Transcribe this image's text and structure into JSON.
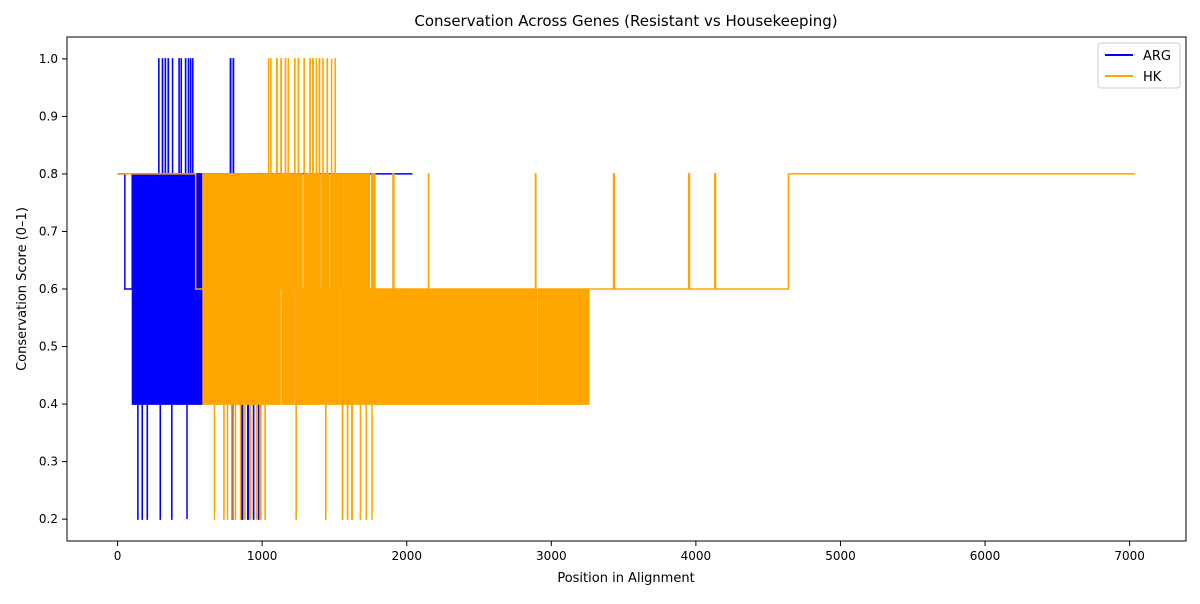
{
  "chart_data": {
    "type": "line",
    "title": "Conservation Across Genes (Resistant vs Housekeeping)",
    "xlabel": "Position in Alignment",
    "ylabel": "Conservation Score (0–1)",
    "xlim": [
      -350,
      7390
    ],
    "ylim": [
      0.162,
      1.038
    ],
    "x_ticks": [
      0,
      1000,
      2000,
      3000,
      4000,
      5000,
      6000,
      7000
    ],
    "y_ticks": [
      0.2,
      0.3,
      0.4,
      0.5,
      0.6,
      0.7,
      0.8,
      0.9,
      1.0
    ],
    "grid": false,
    "legend_position": "top-right",
    "series": [
      {
        "name": "ARG",
        "color": "#0000ff",
        "x_end": 2040,
        "segments": [
          {
            "x0": 0,
            "x1": 50,
            "pattern": "flat",
            "levels": [
              0.8
            ]
          },
          {
            "x0": 50,
            "x1": 100,
            "pattern": "flat",
            "levels": [
              0.6
            ]
          },
          {
            "x0": 100,
            "x1": 590,
            "pattern": "dense",
            "levels": [
              0.4,
              0.6,
              0.8
            ]
          },
          {
            "x0": 590,
            "x1": 1020,
            "pattern": "sparse",
            "levels": [
              0.6,
              0.8
            ]
          },
          {
            "x0": 1020,
            "x1": 2040,
            "pattern": "flat",
            "levels": [
              0.8
            ]
          }
        ],
        "spikes": [
          {
            "x": 140,
            "y": 0.2
          },
          {
            "x": 170,
            "y": 0.2
          },
          {
            "x": 205,
            "y": 0.2
          },
          {
            "x": 285,
            "y": 1.0
          },
          {
            "x": 295,
            "y": 0.2
          },
          {
            "x": 310,
            "y": 1.0
          },
          {
            "x": 330,
            "y": 1.0
          },
          {
            "x": 350,
            "y": 1.0
          },
          {
            "x": 375,
            "y": 0.2
          },
          {
            "x": 380,
            "y": 1.0
          },
          {
            "x": 425,
            "y": 1.0
          },
          {
            "x": 440,
            "y": 1.0
          },
          {
            "x": 470,
            "y": 1.0
          },
          {
            "x": 480,
            "y": 0.2
          },
          {
            "x": 490,
            "y": 1.0
          },
          {
            "x": 505,
            "y": 1.0
          },
          {
            "x": 520,
            "y": 1.0
          },
          {
            "x": 780,
            "y": 1.0
          },
          {
            "x": 790,
            "y": 0.2
          },
          {
            "x": 800,
            "y": 1.0
          },
          {
            "x": 860,
            "y": 0.2
          },
          {
            "x": 900,
            "y": 0.2
          },
          {
            "x": 940,
            "y": 0.2
          },
          {
            "x": 975,
            "y": 0.2
          }
        ]
      },
      {
        "name": "HK",
        "color": "#ffa500",
        "x_end": 7040,
        "segments": [
          {
            "x0": 0,
            "x1": 540,
            "pattern": "flat",
            "levels": [
              0.8
            ]
          },
          {
            "x0": 540,
            "x1": 590,
            "pattern": "flat",
            "levels": [
              0.6
            ]
          },
          {
            "x0": 590,
            "x1": 1100,
            "pattern": "dense",
            "levels": [
              0.4,
              0.6,
              0.8
            ]
          },
          {
            "x0": 1100,
            "x1": 1780,
            "pattern": "medium",
            "levels": [
              0.4,
              0.6,
              0.8
            ]
          },
          {
            "x0": 1780,
            "x1": 3260,
            "pattern": "sparse",
            "levels": [
              0.4,
              0.6
            ]
          },
          {
            "x0": 3260,
            "x1": 4640,
            "pattern": "flat",
            "levels": [
              0.6
            ]
          },
          {
            "x0": 4640,
            "x1": 7040,
            "pattern": "flat",
            "levels": [
              0.8
            ]
          }
        ],
        "spikes": [
          {
            "x": 670,
            "y": 0.2
          },
          {
            "x": 735,
            "y": 0.2
          },
          {
            "x": 760,
            "y": 0.2
          },
          {
            "x": 790,
            "y": 0.2
          },
          {
            "x": 815,
            "y": 0.2
          },
          {
            "x": 850,
            "y": 0.2
          },
          {
            "x": 880,
            "y": 0.2
          },
          {
            "x": 920,
            "y": 0.2
          },
          {
            "x": 960,
            "y": 0.2
          },
          {
            "x": 990,
            "y": 0.2
          },
          {
            "x": 1020,
            "y": 0.2
          },
          {
            "x": 1045,
            "y": 1.0
          },
          {
            "x": 1060,
            "y": 1.0
          },
          {
            "x": 1100,
            "y": 1.0
          },
          {
            "x": 1130,
            "y": 1.0
          },
          {
            "x": 1160,
            "y": 1.0
          },
          {
            "x": 1180,
            "y": 1.0
          },
          {
            "x": 1225,
            "y": 1.0
          },
          {
            "x": 1235,
            "y": 0.2
          },
          {
            "x": 1250,
            "y": 1.0
          },
          {
            "x": 1290,
            "y": 1.0
          },
          {
            "x": 1330,
            "y": 1.0
          },
          {
            "x": 1350,
            "y": 1.0
          },
          {
            "x": 1375,
            "y": 1.0
          },
          {
            "x": 1395,
            "y": 1.0
          },
          {
            "x": 1420,
            "y": 1.0
          },
          {
            "x": 1440,
            "y": 0.2
          },
          {
            "x": 1450,
            "y": 1.0
          },
          {
            "x": 1480,
            "y": 1.0
          },
          {
            "x": 1505,
            "y": 1.0
          },
          {
            "x": 1555,
            "y": 0.2
          },
          {
            "x": 1590,
            "y": 0.2
          },
          {
            "x": 1620,
            "y": 0.2
          },
          {
            "x": 1680,
            "y": 0.2
          },
          {
            "x": 1720,
            "y": 0.2
          },
          {
            "x": 1760,
            "y": 0.2
          },
          {
            "x": 1905,
            "y": 0.8
          },
          {
            "x": 2150,
            "y": 0.8
          },
          {
            "x": 2890,
            "y": 0.8
          },
          {
            "x": 3430,
            "y": 0.8
          },
          {
            "x": 3950,
            "y": 0.8
          },
          {
            "x": 4130,
            "y": 0.8
          }
        ]
      }
    ]
  }
}
